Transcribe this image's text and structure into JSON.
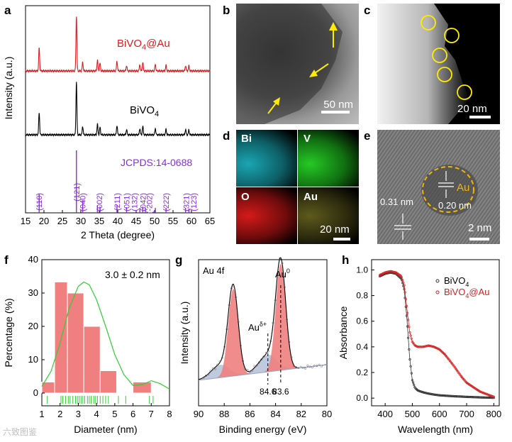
{
  "panel_letters": [
    "a",
    "b",
    "c",
    "d",
    "e",
    "f",
    "g",
    "h"
  ],
  "watermark": "六致图鉴",
  "micrographs": {
    "b": {
      "scale": "50 nm"
    },
    "c": {
      "scale": "20 nm"
    },
    "d": {
      "labels": [
        "Bi",
        "V",
        "O",
        "Au"
      ],
      "scale": "20 nm"
    },
    "e": {
      "label_au": "Au",
      "d1": "0.31 nm",
      "d2": "0.20 nm",
      "scale": "2 nm"
    }
  },
  "colors": {
    "red": "#d42020",
    "purple": "#8a2be2",
    "black": "#000000",
    "pink": "#f08080",
    "green": "#33cc33",
    "blue": "#a9b8d4"
  },
  "chart_data": [
    {
      "id": "a",
      "type": "line",
      "title": "",
      "xlabel": "2 Theta (degree)",
      "ylabel": "Intensity (a.u.)",
      "xlim": [
        15,
        65
      ],
      "xticks": [
        "15",
        "20",
        "25",
        "30",
        "35",
        "40",
        "45",
        "50",
        "55",
        "60",
        "65"
      ],
      "series": [
        {
          "name": "BiVO₄@Au",
          "label_main": "BiVO",
          "label_sub": "4",
          "label_tail": "@Au",
          "peaks": [
            [
              18.7,
              0.42
            ],
            [
              28.8,
              1.0
            ],
            [
              30.5,
              0.16
            ],
            [
              34.5,
              0.2
            ],
            [
              35.2,
              0.14
            ],
            [
              39.8,
              0.18
            ],
            [
              42.4,
              0.1
            ],
            [
              46.0,
              0.12
            ],
            [
              46.8,
              0.16
            ],
            [
              50.2,
              0.12
            ],
            [
              53.1,
              0.1
            ],
            [
              58.4,
              0.1
            ],
            [
              59.3,
              0.09
            ]
          ]
        },
        {
          "name": "BiVO₄",
          "label_main": "BiVO",
          "label_sub": "4",
          "label_tail": "",
          "peaks": [
            [
              18.7,
              0.42
            ],
            [
              28.8,
              1.0
            ],
            [
              30.5,
              0.16
            ],
            [
              34.5,
              0.2
            ],
            [
              35.2,
              0.14
            ],
            [
              39.8,
              0.18
            ],
            [
              42.4,
              0.1
            ],
            [
              46.0,
              0.12
            ],
            [
              46.8,
              0.16
            ],
            [
              50.2,
              0.12
            ],
            [
              53.1,
              0.1
            ],
            [
              58.4,
              0.1
            ],
            [
              59.3,
              0.09
            ]
          ]
        }
      ],
      "reference": {
        "name": "JCPDS:14-0688",
        "lines": [
          [
            18.7,
            0.3
          ],
          [
            28.8,
            1.0
          ],
          [
            30.5,
            0.2
          ],
          [
            34.5,
            0.12
          ],
          [
            35.2,
            0.1
          ],
          [
            39.8,
            0.12
          ],
          [
            42.4,
            0.09
          ],
          [
            46.0,
            0.08
          ],
          [
            46.8,
            0.1
          ],
          [
            47.5,
            0.08
          ],
          [
            50.2,
            0.08
          ],
          [
            53.1,
            0.08
          ],
          [
            58.4,
            0.08
          ],
          [
            59.3,
            0.07
          ]
        ],
        "hkl": [
          [
            18.7,
            "(110)"
          ],
          [
            28.8,
            "(121)"
          ],
          [
            30.5,
            "(040)"
          ],
          [
            35.0,
            "(002)"
          ],
          [
            39.8,
            "(211)"
          ],
          [
            42.4,
            "(051)"
          ],
          [
            44.5,
            "(132)"
          ],
          [
            46.8,
            "(042)"
          ],
          [
            48.6,
            "(-202)"
          ],
          [
            53.1,
            "(222)"
          ],
          [
            58.6,
            "(321)"
          ],
          [
            60.6,
            "(123)"
          ]
        ]
      }
    },
    {
      "id": "f",
      "type": "bar",
      "xlabel": "Diameter (nm)",
      "ylabel": "Percentage (%)",
      "xlim": [
        1,
        8
      ],
      "ylim": [
        0,
        40
      ],
      "xticks": [
        "1",
        "2",
        "3",
        "4",
        "5",
        "6",
        "7",
        "8"
      ],
      "yticks": [
        "0",
        "10",
        "20",
        "30",
        "40"
      ],
      "bin_edges": [
        1,
        1.7,
        2.4,
        3.3,
        4.2,
        5.1,
        6.0,
        7.0,
        8.0
      ],
      "values": [
        3.3,
        33.3,
        30.0,
        20.0,
        6.7,
        0,
        3.3,
        0
      ],
      "annotation": "3.0 ± 0.2 nm",
      "rug": [
        1.3,
        2.05,
        2.15,
        2.3,
        2.45,
        2.55,
        2.7,
        2.85,
        2.95,
        3.05,
        3.15,
        3.25,
        3.35,
        3.5,
        3.6,
        3.7,
        3.85,
        3.95,
        4.05,
        4.2,
        4.35,
        4.5,
        4.65,
        5.2,
        5.6,
        6.9,
        7.1
      ],
      "fit": [
        [
          1.0,
          2.0
        ],
        [
          1.5,
          6.5
        ],
        [
          2.0,
          15.0
        ],
        [
          2.5,
          25.5
        ],
        [
          3.0,
          32.0
        ],
        [
          3.3,
          33.3
        ],
        [
          3.6,
          32.5
        ],
        [
          4.0,
          28.0
        ],
        [
          4.5,
          20.0
        ],
        [
          5.0,
          11.5
        ],
        [
          5.5,
          5.5
        ],
        [
          6.0,
          2.3
        ],
        [
          6.5,
          2.5
        ],
        [
          7.0,
          3.7
        ],
        [
          7.5,
          2.8
        ],
        [
          8.0,
          1.2
        ]
      ]
    },
    {
      "id": "g",
      "type": "area",
      "xlabel": "Binding energy (eV)",
      "ylabel": "Intensity (a.u.)",
      "xlim": [
        90,
        80
      ],
      "xticks": [
        "90",
        "88",
        "86",
        "84",
        "82",
        "80"
      ],
      "title": "Au 4f",
      "peak_labels": [
        {
          "main": "Au",
          "sup": "0",
          "x": 83.6
        },
        {
          "main": "Au",
          "sup": "δ+",
          "x": 84.6
        }
      ],
      "dashed_marks": [
        {
          "x": 84.6,
          "label": "84.6"
        },
        {
          "x": 83.6,
          "label": "83.6"
        }
      ],
      "components": {
        "red": [
          [
            87.3,
            0.82,
            0.55
          ],
          [
            83.6,
            1.0,
            0.55
          ]
        ],
        "blue": [
          [
            88.3,
            0.12,
            1.0
          ],
          [
            84.6,
            0.16,
            1.0
          ]
        ]
      },
      "baseline": [
        [
          90,
          0.0
        ],
        [
          80,
          0.0
        ]
      ]
    },
    {
      "id": "h",
      "type": "line",
      "xlabel": "Wavelength (nm)",
      "ylabel": "Absorbance",
      "xlim": [
        350,
        820
      ],
      "ylim": [
        -0.06,
        1.08
      ],
      "xticks": [
        "400",
        "500",
        "600",
        "700",
        "800"
      ],
      "yticks": [
        "0.0",
        "0.2",
        "0.4",
        "0.6",
        "0.8",
        "1.0"
      ],
      "series": [
        {
          "name": "BiVO₄",
          "label_main": "BiVO",
          "label_sub": "4",
          "label_tail": "",
          "x": [
            380,
            400,
            420,
            440,
            460,
            470,
            480,
            490,
            500,
            510,
            520,
            540,
            560,
            580,
            600,
            650,
            700,
            750,
            800
          ],
          "y": [
            0.95,
            0.97,
            0.98,
            0.97,
            0.93,
            0.85,
            0.62,
            0.32,
            0.14,
            0.08,
            0.06,
            0.045,
            0.035,
            0.028,
            0.022,
            0.015,
            0.01,
            0.006,
            0.003
          ]
        },
        {
          "name": "BiVO₄@Au",
          "label_main": "BiVO",
          "label_sub": "4",
          "label_tail": "@Au",
          "x": [
            380,
            400,
            420,
            440,
            460,
            470,
            480,
            490,
            500,
            510,
            520,
            540,
            560,
            580,
            600,
            620,
            650,
            680,
            700,
            750,
            800
          ],
          "y": [
            0.96,
            0.98,
            0.99,
            0.98,
            0.95,
            0.88,
            0.7,
            0.52,
            0.44,
            0.41,
            0.4,
            0.4,
            0.41,
            0.4,
            0.38,
            0.34,
            0.26,
            0.17,
            0.12,
            0.05,
            0.01
          ]
        }
      ]
    }
  ]
}
